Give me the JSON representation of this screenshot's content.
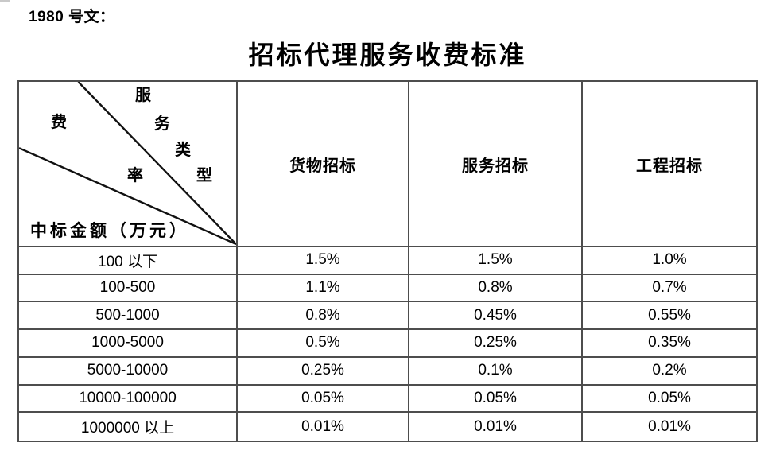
{
  "doc": {
    "ref_label": "1980 号文：",
    "title": "招标代理服务收费标准"
  },
  "table": {
    "corner": {
      "type_chars": [
        "服",
        "务",
        "类",
        "型"
      ],
      "rate_chars": [
        "费",
        "率"
      ],
      "bottom_label": "中标金额（万元）"
    },
    "columns": [
      "货物招标",
      "服务招标",
      "工程招标"
    ],
    "rows": [
      {
        "range": "100 以下",
        "values": [
          "1.5%",
          "1.5%",
          "1.0%"
        ]
      },
      {
        "range": "100-500",
        "values": [
          "1.1%",
          "0.8%",
          "0.7%"
        ]
      },
      {
        "range": "500-1000",
        "values": [
          "0.8%",
          "0.45%",
          "0.55%"
        ]
      },
      {
        "range": "1000-5000",
        "values": [
          "0.5%",
          "0.25%",
          "0.35%"
        ]
      },
      {
        "range": "5000-10000",
        "values": [
          "0.25%",
          "0.1%",
          "0.2%"
        ]
      },
      {
        "range": "10000-100000",
        "values": [
          "0.05%",
          "0.05%",
          "0.05%"
        ]
      },
      {
        "range": "1000000 以上",
        "values": [
          "0.01%",
          "0.01%",
          "0.01%"
        ]
      }
    ],
    "colors": {
      "border": "#4d4d4d",
      "diagonal_line": "#111111",
      "text": "#000000"
    }
  }
}
